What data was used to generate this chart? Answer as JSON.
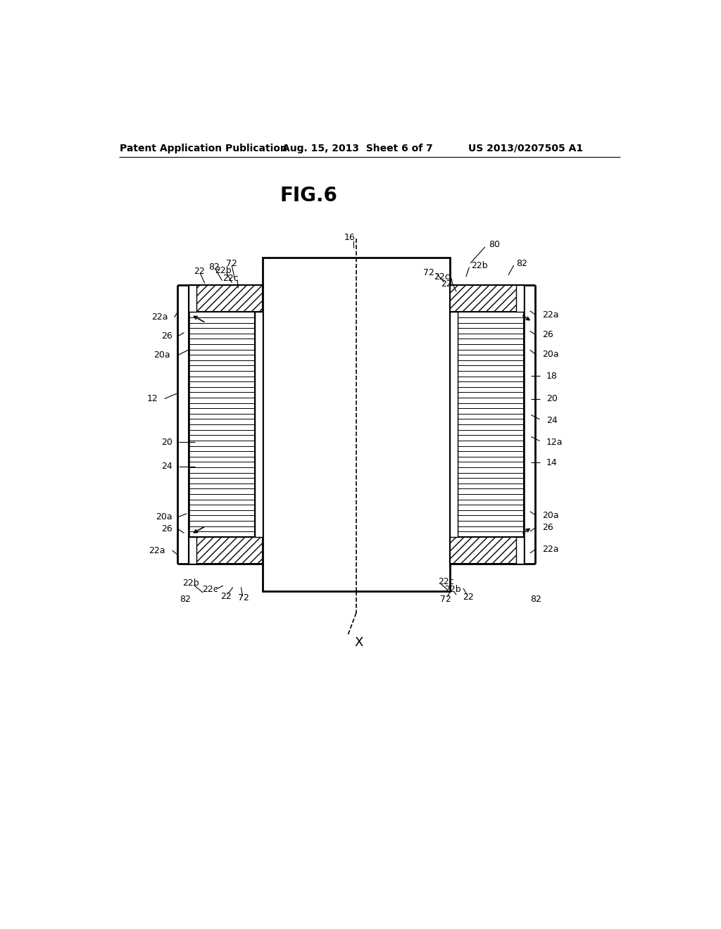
{
  "header_left": "Patent Application Publication",
  "header_mid": "Aug. 15, 2013  Sheet 6 of 7",
  "header_right": "US 2013/0207505 A1",
  "fig_title": "FIG.6",
  "bg_color": "#ffffff",
  "line_color": "#000000"
}
